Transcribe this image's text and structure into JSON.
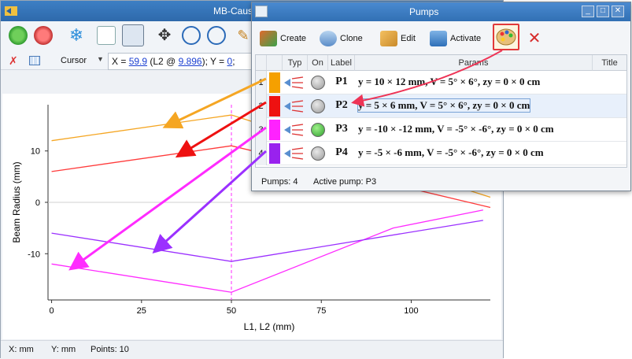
{
  "main_window": {
    "title": "MB-Caust",
    "cursor_label": "Cursor",
    "coords": {
      "x_label": "X = ",
      "x_value": "59.9",
      "l2_pre": " (L2 @ ",
      "l2_value": "9.896",
      "y_label": "); Y = ",
      "y_value": "0",
      "y_end": ";"
    }
  },
  "chart_data": {
    "type": "line",
    "xlabel": "L1, L2 (mm)",
    "ylabel": "Beam Radius (mm)",
    "xlim": [
      -1,
      122
    ],
    "ylim": [
      -19,
      19
    ],
    "x_ticks": [
      0,
      25,
      50,
      75,
      100
    ],
    "y_ticks": [
      -10,
      0,
      10
    ],
    "grid": false,
    "divider_x": 50,
    "series": [
      {
        "color": "#f5a623",
        "x": [
          0,
          50,
          122
        ],
        "y": [
          12,
          17,
          1
        ]
      },
      {
        "color": "#ff3b3b",
        "x": [
          0,
          50,
          122
        ],
        "y": [
          6,
          11,
          -1
        ]
      },
      {
        "color": "#ff2bff",
        "x": [
          0,
          50,
          95,
          120
        ],
        "y": [
          -12,
          -17.5,
          -5,
          -1.5
        ]
      },
      {
        "color": "#9b30ff",
        "x": [
          0,
          50,
          120
        ],
        "y": [
          -6,
          -11.5,
          -3.5
        ]
      }
    ]
  },
  "statusbar": {
    "x_units": "X: mm",
    "y_units": "Y: mm",
    "points": "Points: 10"
  },
  "pumps": {
    "title": "Pumps",
    "toolbar": {
      "create": "Create",
      "clone": "Clone",
      "edit": "Edit",
      "activate": "Activate"
    },
    "columns": {
      "typ": "Typ",
      "on": "On",
      "label": "Label",
      "params": "Params",
      "title": "Title"
    },
    "rows": [
      {
        "num": "1",
        "color": "#f5a000",
        "on": false,
        "label": "P1",
        "params": "y = 10 × 12 mm, V = 5° × 6°, zy = 0 × 0 cm"
      },
      {
        "num": "2",
        "color": "#ee1111",
        "on": false,
        "label": "P2",
        "params": "y = 5 × 6 mm, V = 5° × 6°, zy = 0 × 0 cm"
      },
      {
        "num": "3",
        "color": "#ff22ff",
        "on": true,
        "label": "P3",
        "params": "y = -10 × -12 mm, V = -5° × -6°, zy = 0 × 0 cm"
      },
      {
        "num": "4",
        "color": "#9922ee",
        "on": false,
        "label": "P4",
        "params": "y = -5 × -6 mm, V = -5° × -6°, zy = 0 × 0 cm"
      }
    ],
    "status": {
      "count": "Pumps: 4",
      "active": "Active pump: P3"
    }
  },
  "icons": {
    "main_toolbar": [
      "refresh-icon",
      "refresh-all-icon",
      "freeze-icon",
      "axis-text-icon",
      "axis-log-icon",
      "zoom-fit-icon",
      "zoom-in-icon",
      "zoom-out-icon",
      "pencil-icon"
    ],
    "pumps_toolbar": [
      "create-icon",
      "clone-icon",
      "edit-icon",
      "activate-icon",
      "palette-icon",
      "delete-icon"
    ]
  }
}
